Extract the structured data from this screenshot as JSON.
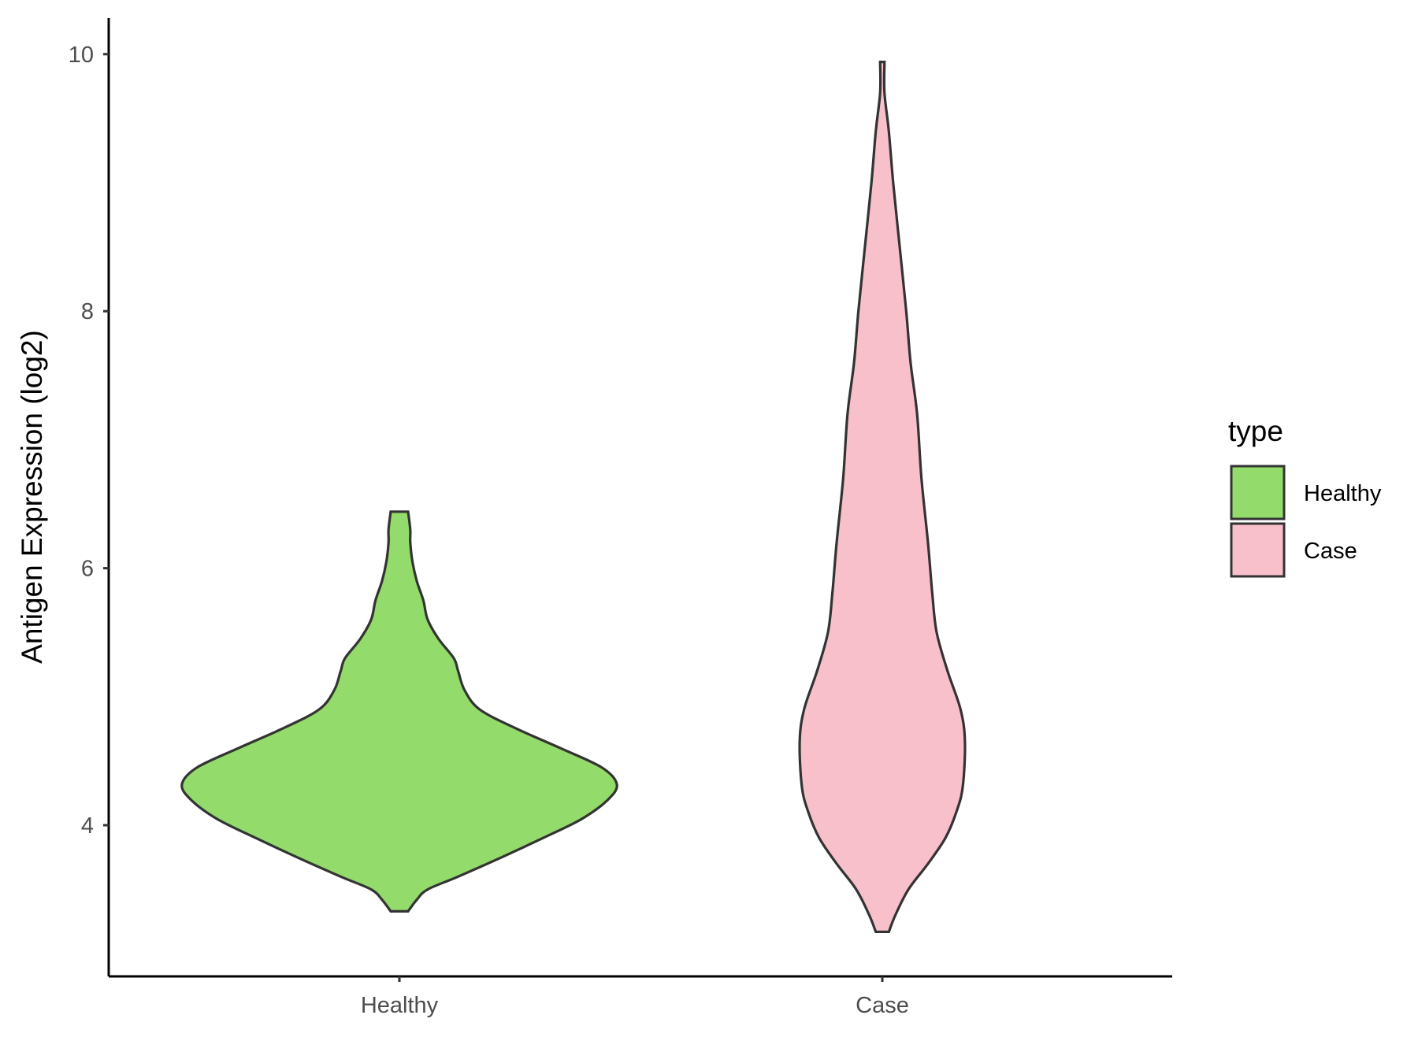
{
  "chart_data": {
    "type": "violin",
    "title": "",
    "xlabel": "",
    "ylabel": "Antigen Expression (log2)",
    "ylim": [
      2.6,
      10.3
    ],
    "yticks": [
      4,
      6,
      8,
      10
    ],
    "categories": [
      "Healthy",
      "Case"
    ],
    "grid": false,
    "legend": {
      "title": "type",
      "position": "right",
      "entries": [
        {
          "label": "Healthy",
          "color": "#93DB6A"
        },
        {
          "label": "Case",
          "color": "#F8C0CB"
        }
      ]
    },
    "series": [
      {
        "name": "Healthy",
        "color": "#93DB6A",
        "min": 3.33,
        "max": 6.44,
        "density": [
          {
            "y": 3.33,
            "w": 0.04
          },
          {
            "y": 3.42,
            "w": 0.08
          },
          {
            "y": 3.5,
            "w": 0.13
          },
          {
            "y": 3.6,
            "w": 0.27
          },
          {
            "y": 3.75,
            "w": 0.47
          },
          {
            "y": 3.9,
            "w": 0.66
          },
          {
            "y": 4.05,
            "w": 0.84
          },
          {
            "y": 4.2,
            "w": 0.96
          },
          {
            "y": 4.32,
            "w": 1.0
          },
          {
            "y": 4.45,
            "w": 0.93
          },
          {
            "y": 4.6,
            "w": 0.74
          },
          {
            "y": 4.75,
            "w": 0.54
          },
          {
            "y": 4.9,
            "w": 0.37
          },
          {
            "y": 5.05,
            "w": 0.3
          },
          {
            "y": 5.2,
            "w": 0.27
          },
          {
            "y": 5.3,
            "w": 0.25
          },
          {
            "y": 5.45,
            "w": 0.18
          },
          {
            "y": 5.6,
            "w": 0.13
          },
          {
            "y": 5.75,
            "w": 0.11
          },
          {
            "y": 5.9,
            "w": 0.08
          },
          {
            "y": 6.05,
            "w": 0.06
          },
          {
            "y": 6.2,
            "w": 0.05
          },
          {
            "y": 6.3,
            "w": 0.05
          },
          {
            "y": 6.44,
            "w": 0.04
          }
        ]
      },
      {
        "name": "Case",
        "color": "#F8C0CB",
        "min": 3.17,
        "max": 9.94,
        "density": [
          {
            "y": 3.17,
            "w": 0.03
          },
          {
            "y": 3.3,
            "w": 0.06
          },
          {
            "y": 3.5,
            "w": 0.12
          },
          {
            "y": 3.7,
            "w": 0.21
          },
          {
            "y": 3.9,
            "w": 0.29
          },
          {
            "y": 4.1,
            "w": 0.34
          },
          {
            "y": 4.3,
            "w": 0.37
          },
          {
            "y": 4.65,
            "w": 0.38
          },
          {
            "y": 4.9,
            "w": 0.36
          },
          {
            "y": 5.2,
            "w": 0.3
          },
          {
            "y": 5.5,
            "w": 0.25
          },
          {
            "y": 5.8,
            "w": 0.23
          },
          {
            "y": 6.2,
            "w": 0.21
          },
          {
            "y": 6.7,
            "w": 0.18
          },
          {
            "y": 7.2,
            "w": 0.16
          },
          {
            "y": 7.6,
            "w": 0.13
          },
          {
            "y": 8.0,
            "w": 0.11
          },
          {
            "y": 8.5,
            "w": 0.08
          },
          {
            "y": 9.0,
            "w": 0.05
          },
          {
            "y": 9.4,
            "w": 0.03
          },
          {
            "y": 9.7,
            "w": 0.01
          },
          {
            "y": 9.94,
            "w": 0.01
          }
        ]
      }
    ]
  }
}
